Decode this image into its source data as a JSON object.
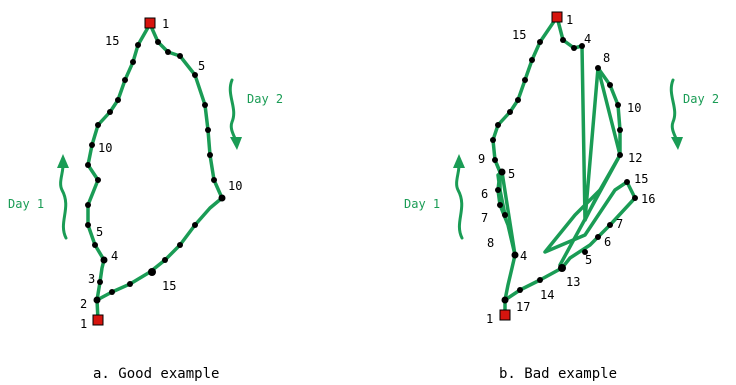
{
  "panel_a": {
    "caption": "a. Good example",
    "day1": "Day 1",
    "day2": "Day 2",
    "labels": [
      "1",
      "15",
      "5",
      "10",
      "10",
      "15",
      "1",
      "2",
      "3",
      "4",
      "5"
    ]
  },
  "panel_b": {
    "caption": "b. Bad example",
    "day1": "Day 1",
    "day2": "Day 2",
    "labels": [
      "1",
      "15",
      "4",
      "8",
      "10",
      "9",
      "5",
      "6",
      "7",
      "8",
      "4",
      "12",
      "15",
      "16",
      "7",
      "6",
      "5",
      "13",
      "14",
      "17",
      "1"
    ]
  },
  "colors": {
    "route": "#1a9c55",
    "marker": "#d6140e",
    "dot": "#000000"
  }
}
